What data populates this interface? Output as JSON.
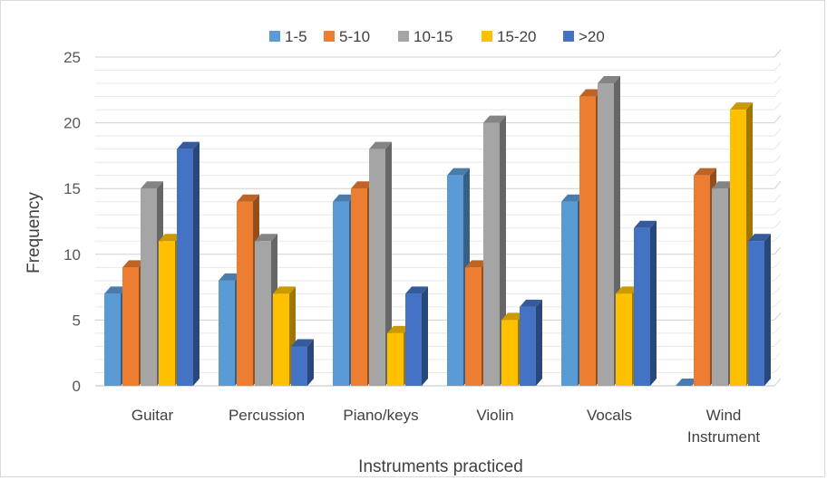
{
  "chart_data": {
    "type": "bar",
    "style": "3d-clustered-column",
    "title": "",
    "xlabel": "Instruments practiced",
    "ylabel": "Frequency",
    "ylim": [
      0,
      25
    ],
    "yticks": [
      "0",
      "5",
      "10",
      "15",
      "20",
      "25"
    ],
    "grid": "horizontal",
    "legend_position": "top",
    "categories": [
      [
        "Guitar"
      ],
      [
        "Percussion"
      ],
      [
        "Piano/keys"
      ],
      [
        "Violin"
      ],
      [
        "Vocals"
      ],
      [
        "Wind",
        "Instrument"
      ]
    ],
    "series": [
      {
        "name": "1-5",
        "color": "#5b9bd5",
        "values": [
          7,
          8,
          14,
          16,
          14,
          0
        ]
      },
      {
        "name": "5-10",
        "color": "#ed7d31",
        "values": [
          9,
          14,
          15,
          9,
          22,
          16
        ]
      },
      {
        "name": "10-15",
        "color": "#a5a5a5",
        "values": [
          15,
          11,
          18,
          20,
          23,
          15
        ]
      },
      {
        "name": "15-20",
        "color": "#ffc000",
        "values": [
          11,
          7,
          4,
          5,
          7,
          21
        ]
      },
      {
        "name": ">20",
        "color": "#4472c4",
        "values": [
          18,
          3,
          7,
          6,
          12,
          11
        ]
      }
    ]
  }
}
